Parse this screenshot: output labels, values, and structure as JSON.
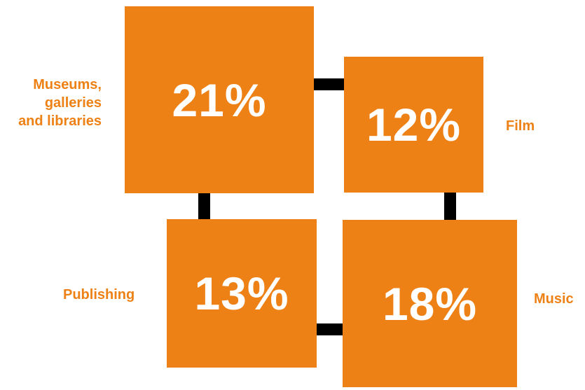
{
  "colors": {
    "box_fill": "#ee8115",
    "label_text": "#ee8115",
    "value_text": "#ffffff",
    "connector": "#000000"
  },
  "segments": [
    {
      "id": "museums",
      "value": "21%",
      "label_lines": [
        "Museums,",
        "galleries",
        "and libraries"
      ]
    },
    {
      "id": "film",
      "value": "12%",
      "label_lines": [
        "Film"
      ]
    },
    {
      "id": "publishing",
      "value": "13%",
      "label_lines": [
        "Publishing"
      ]
    },
    {
      "id": "music",
      "value": "18%",
      "label_lines": [
        "Music"
      ]
    }
  ]
}
